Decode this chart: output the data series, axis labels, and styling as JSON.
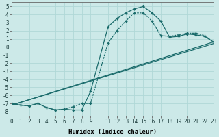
{
  "xlabel": "Humidex (Indice chaleur)",
  "xlim": [
    0,
    23
  ],
  "ylim": [
    -8.5,
    5.5
  ],
  "xticks": [
    0,
    1,
    2,
    3,
    4,
    5,
    6,
    7,
    8,
    9,
    11,
    12,
    13,
    14,
    15,
    16,
    17,
    18,
    19,
    20,
    21,
    22,
    23
  ],
  "yticks": [
    5,
    4,
    3,
    2,
    1,
    0,
    -1,
    -2,
    -3,
    -4,
    -5,
    -6,
    -7,
    -8
  ],
  "bg_color": "#cce9e8",
  "line_color": "#1a6b6b",
  "grid_color": "#b0d8d7",
  "curve1_x": [
    0,
    1,
    2,
    3,
    4,
    5,
    6,
    7,
    8,
    9,
    11,
    12,
    13,
    14,
    15,
    16,
    17,
    18,
    19,
    20,
    21,
    22,
    23
  ],
  "curve1_y": [
    -7.0,
    -7.2,
    -7.3,
    -7.0,
    -7.5,
    -7.8,
    -7.7,
    -7.8,
    -7.8,
    -5.5,
    2.5,
    3.5,
    4.2,
    4.7,
    5.0,
    4.2,
    3.2,
    1.2,
    1.3,
    1.6,
    1.5,
    1.3,
    0.6
  ],
  "curve2_x": [
    0,
    1,
    2,
    3,
    4,
    5,
    6,
    7,
    8,
    9,
    11,
    12,
    13,
    14,
    15,
    16,
    17,
    18,
    19,
    20,
    21,
    22,
    23
  ],
  "curve2_y": [
    -7.0,
    -7.2,
    -7.3,
    -7.0,
    -7.5,
    -7.8,
    -7.7,
    -7.4,
    -7.0,
    -7.0,
    0.5,
    2.0,
    3.2,
    4.2,
    4.2,
    3.2,
    1.4,
    1.3,
    1.5,
    1.7,
    1.7,
    1.4,
    0.6
  ],
  "line1_x": [
    0,
    23
  ],
  "line1_y": [
    -7.2,
    0.6
  ],
  "line2_x": [
    0,
    23
  ],
  "line2_y": [
    -7.2,
    0.4
  ],
  "tick_fontsize": 5.5,
  "xlabel_fontsize": 6.5
}
